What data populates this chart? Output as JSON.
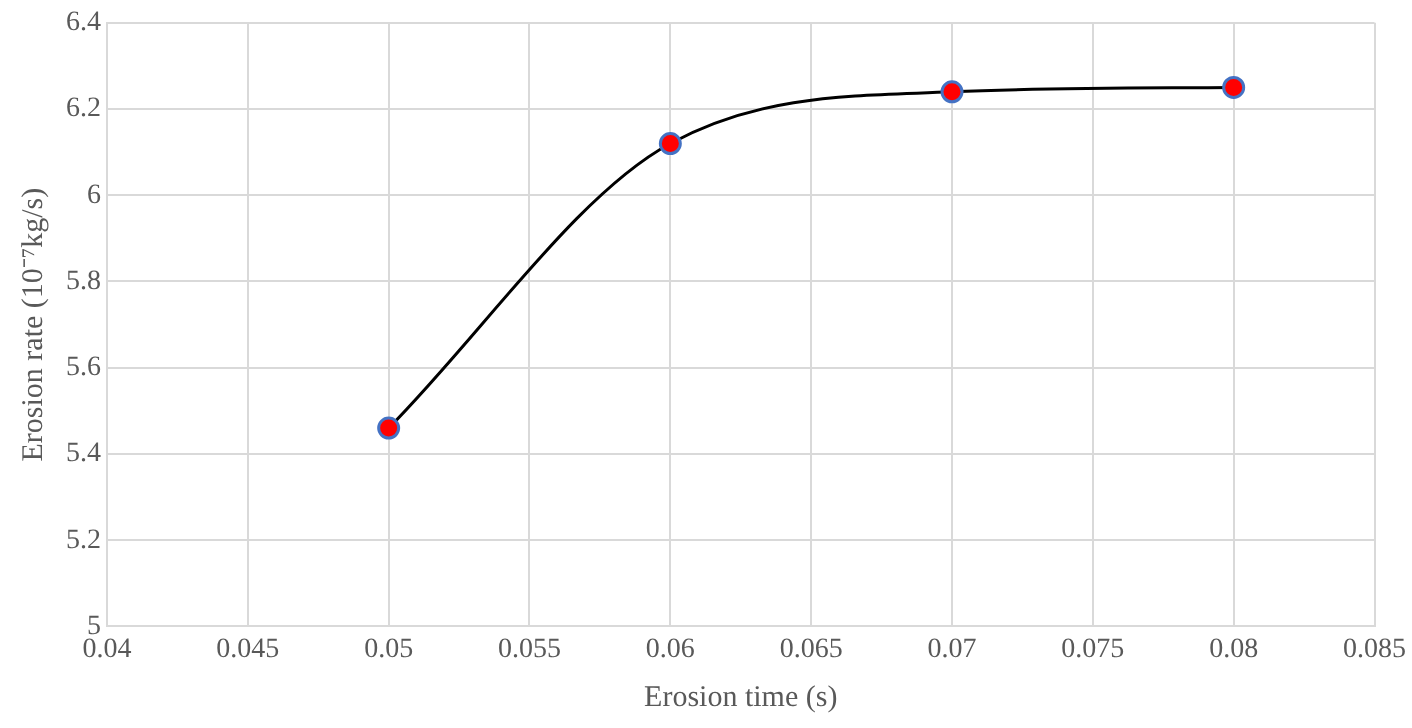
{
  "chart_data": {
    "type": "line",
    "xlabel": "Erosion time (s)",
    "ylabel": "Erosion rate (10⁻⁷kg/s)",
    "x": [
      0.05,
      0.06,
      0.07,
      0.08
    ],
    "series": [
      {
        "color": "#000000",
        "colors": [
          "#ff0000",
          "#ff0000",
          "#ff0000",
          "#ff0000"
        ],
        "values": [
          5.46,
          6.12,
          6.24,
          6.25
        ]
      }
    ],
    "xlim": [
      0.04,
      0.085
    ],
    "xticks": [
      0.04,
      0.045,
      0.05,
      0.055,
      0.06,
      0.065,
      0.07,
      0.075,
      0.08,
      0.085
    ],
    "ylim": [
      5,
      6.4
    ],
    "yticks": [
      5,
      5.2,
      5.4,
      5.6,
      5.8,
      6,
      6.2,
      6.4
    ],
    "grid": true,
    "legend": false,
    "marker": "circle",
    "line_style": "solid"
  }
}
